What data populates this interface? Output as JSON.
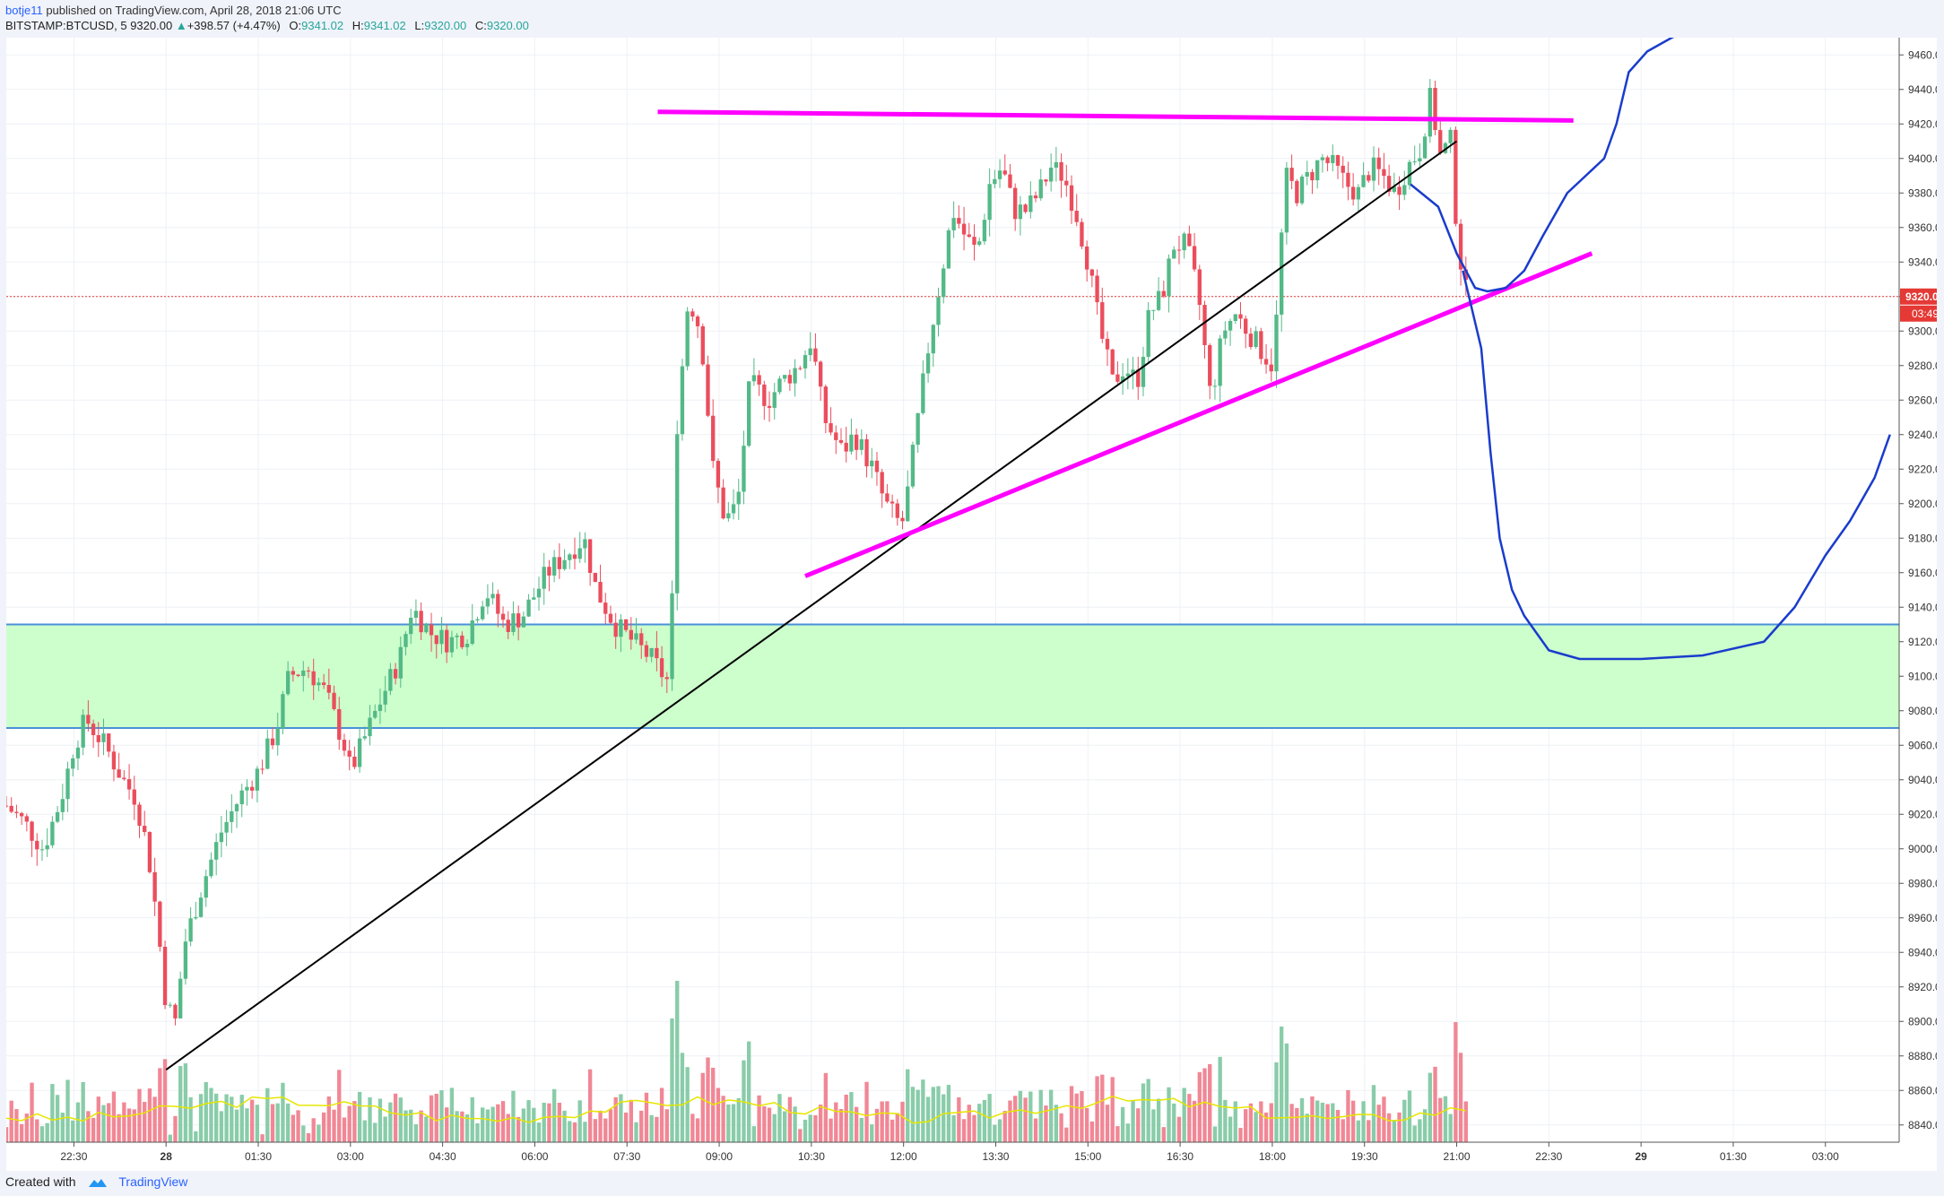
{
  "header": {
    "username": "botje11",
    "published_text": "published on TradingView.com, April 28, 2018 21:06 UTC",
    "symbol": "BITSTAMP:BTCUSD, 5",
    "last": "9320.00",
    "change": "+398.57 (+4.47%)",
    "o_label": "O:",
    "o_value": "9341.02",
    "h_label": "H:",
    "h_value": "9341.02",
    "l_label": "L:",
    "l_value": "9320.00",
    "c_label": "C:",
    "c_value": "9320.00"
  },
  "footer": {
    "created_with": "Created with",
    "brand": "TradingView"
  },
  "chart_data": {
    "type": "candlestick",
    "symbol": "BITSTAMP:BTCUSD",
    "interval": "5",
    "y_range": [
      8830,
      9470
    ],
    "x_range_hours": [
      -2.6,
      28.2
    ],
    "y_ticks": [
      9460,
      9440,
      9420,
      9400,
      9380,
      9360,
      9340,
      9320,
      9300,
      9280,
      9260,
      9240,
      9220,
      9200,
      9180,
      9160,
      9140,
      9120,
      9100,
      9080,
      9060,
      9040,
      9020,
      9000,
      8980,
      8960,
      8940,
      8920,
      8900,
      8880,
      8860,
      8840
    ],
    "y_tick_labels": [
      "9460.00",
      "9440.00",
      "9420.00",
      "9400.00",
      "9380.00",
      "9360.00",
      "9340.00",
      "9320.00",
      "9300.00",
      "9280.00",
      "9260.00",
      "9240.00",
      "9220.00",
      "9200.00",
      "9180.00",
      "9160.00",
      "9140.00",
      "9120.00",
      "9100.00",
      "9080.00",
      "9060.00",
      "9040.00",
      "9020.00",
      "9000.00",
      "8980.00",
      "8960.00",
      "8940.00",
      "8920.00",
      "8900.00",
      "8880.00",
      "8860.00",
      "8840.00"
    ],
    "x_ticks": [
      {
        "h": -1.5,
        "label": "22:30",
        "bold": false
      },
      {
        "h": 0,
        "label": "28",
        "bold": true
      },
      {
        "h": 1.5,
        "label": "01:30",
        "bold": false
      },
      {
        "h": 3,
        "label": "03:00",
        "bold": false
      },
      {
        "h": 4.5,
        "label": "04:30",
        "bold": false
      },
      {
        "h": 6,
        "label": "06:00",
        "bold": false
      },
      {
        "h": 7.5,
        "label": "07:30",
        "bold": false
      },
      {
        "h": 9,
        "label": "09:00",
        "bold": false
      },
      {
        "h": 10.5,
        "label": "10:30",
        "bold": false
      },
      {
        "h": 12,
        "label": "12:00",
        "bold": false
      },
      {
        "h": 13.5,
        "label": "13:30",
        "bold": false
      },
      {
        "h": 15,
        "label": "15:00",
        "bold": false
      },
      {
        "h": 16.5,
        "label": "16:30",
        "bold": false
      },
      {
        "h": 18,
        "label": "18:00",
        "bold": false
      },
      {
        "h": 19.5,
        "label": "19:30",
        "bold": false
      },
      {
        "h": 21,
        "label": "21:00",
        "bold": false
      },
      {
        "h": 22.5,
        "label": "22:30",
        "bold": false
      },
      {
        "h": 24,
        "label": "29",
        "bold": true
      },
      {
        "h": 25.5,
        "label": "01:30",
        "bold": false
      },
      {
        "h": 27,
        "label": "03:00",
        "bold": false
      }
    ],
    "price_path": [
      [
        -2.6,
        9025
      ],
      [
        -2.3,
        9015
      ],
      [
        -2.0,
        9000
      ],
      [
        -1.7,
        9030
      ],
      [
        -1.5,
        9060
      ],
      [
        -1.3,
        9075
      ],
      [
        -1.0,
        9060
      ],
      [
        -0.7,
        9040
      ],
      [
        -0.5,
        9030
      ],
      [
        -0.3,
        9000
      ],
      [
        -0.15,
        8960
      ],
      [
        0.0,
        8910
      ],
      [
        0.15,
        8900
      ],
      [
        0.3,
        8945
      ],
      [
        0.6,
        8980
      ],
      [
        0.9,
        9010
      ],
      [
        1.2,
        9030
      ],
      [
        1.5,
        9045
      ],
      [
        1.8,
        9070
      ],
      [
        2.0,
        9100
      ],
      [
        2.3,
        9105
      ],
      [
        2.6,
        9090
      ],
      [
        2.9,
        9060
      ],
      [
        3.0,
        9045
      ],
      [
        3.3,
        9070
      ],
      [
        3.6,
        9095
      ],
      [
        3.8,
        9110
      ],
      [
        4.0,
        9140
      ],
      [
        4.3,
        9125
      ],
      [
        4.6,
        9120
      ],
      [
        4.9,
        9125
      ],
      [
        5.2,
        9150
      ],
      [
        5.5,
        9130
      ],
      [
        5.8,
        9135
      ],
      [
        6.2,
        9160
      ],
      [
        6.5,
        9170
      ],
      [
        6.8,
        9180
      ],
      [
        7.0,
        9150
      ],
      [
        7.3,
        9130
      ],
      [
        7.6,
        9120
      ],
      [
        7.9,
        9110
      ],
      [
        8.2,
        9095
      ],
      [
        8.3,
        9240
      ],
      [
        8.5,
        9320
      ],
      [
        8.7,
        9300
      ],
      [
        8.9,
        9220
      ],
      [
        9.1,
        9190
      ],
      [
        9.3,
        9200
      ],
      [
        9.5,
        9270
      ],
      [
        9.8,
        9260
      ],
      [
        10.0,
        9270
      ],
      [
        10.3,
        9280
      ],
      [
        10.5,
        9295
      ],
      [
        10.7,
        9250
      ],
      [
        11.0,
        9230
      ],
      [
        11.2,
        9240
      ],
      [
        11.5,
        9220
      ],
      [
        11.7,
        9200
      ],
      [
        11.9,
        9190
      ],
      [
        12.0,
        9190
      ],
      [
        12.2,
        9240
      ],
      [
        12.4,
        9290
      ],
      [
        12.6,
        9330
      ],
      [
        12.8,
        9370
      ],
      [
        13.0,
        9355
      ],
      [
        13.2,
        9345
      ],
      [
        13.4,
        9385
      ],
      [
        13.6,
        9395
      ],
      [
        13.8,
        9370
      ],
      [
        14.0,
        9370
      ],
      [
        14.2,
        9380
      ],
      [
        14.4,
        9395
      ],
      [
        14.6,
        9390
      ],
      [
        14.8,
        9370
      ],
      [
        15.0,
        9340
      ],
      [
        15.2,
        9300
      ],
      [
        15.4,
        9270
      ],
      [
        15.6,
        9280
      ],
      [
        15.8,
        9270
      ],
      [
        16.0,
        9310
      ],
      [
        16.2,
        9320
      ],
      [
        16.4,
        9350
      ],
      [
        16.6,
        9350
      ],
      [
        16.8,
        9320
      ],
      [
        17.0,
        9260
      ],
      [
        17.2,
        9300
      ],
      [
        17.4,
        9310
      ],
      [
        17.6,
        9300
      ],
      [
        17.8,
        9290
      ],
      [
        18.0,
        9280
      ],
      [
        18.1,
        9320
      ],
      [
        18.2,
        9390
      ],
      [
        18.4,
        9380
      ],
      [
        18.6,
        9390
      ],
      [
        18.8,
        9400
      ],
      [
        19.0,
        9395
      ],
      [
        19.2,
        9385
      ],
      [
        19.4,
        9380
      ],
      [
        19.6,
        9395
      ],
      [
        19.8,
        9390
      ],
      [
        20.0,
        9380
      ],
      [
        20.2,
        9395
      ],
      [
        20.4,
        9405
      ],
      [
        20.6,
        9440
      ],
      [
        20.7,
        9400
      ],
      [
        20.9,
        9410
      ],
      [
        21.0,
        9360
      ],
      [
        21.1,
        9330
      ],
      [
        21.17,
        9320
      ]
    ],
    "horizontal_lines": [
      {
        "price": 9130,
        "color": "#4a90d9",
        "style": "support-zone-top"
      },
      {
        "price": 9070,
        "color": "#4a90d9",
        "style": "support-zone-bottom"
      }
    ],
    "zone": {
      "from": 9070,
      "to": 9130,
      "color": "#ccffcc"
    },
    "current_price_line": {
      "price": 9320,
      "label": "9320.00",
      "countdown": "03:49",
      "color": "#e53935"
    },
    "trendlines": [
      {
        "from": [
          0.0,
          8872
        ],
        "to": [
          21.0,
          9410
        ],
        "color": "#000000",
        "width": 2
      },
      {
        "from": [
          10.4,
          9158
        ],
        "to": [
          23.2,
          9345
        ],
        "color": "#ff00ff",
        "width": 5
      },
      {
        "from": [
          8.0,
          9427
        ],
        "to": [
          22.9,
          9422
        ],
        "color": "#ff00ff",
        "width": 5
      }
    ],
    "projection_curve": {
      "color": "#1a3ccc",
      "points": [
        [
          20.4,
          9385
        ],
        [
          20.8,
          9365
        ],
        [
          21.1,
          9335
        ],
        [
          21.5,
          9323
        ],
        [
          21.9,
          9328
        ],
        [
          22.2,
          9345
        ],
        [
          22.6,
          9375
        ],
        [
          23.1,
          9400
        ],
        [
          23.4,
          9420
        ],
        [
          23.8,
          9450
        ],
        [
          24.2,
          9462
        ],
        [
          24.6,
          9475
        ],
        [
          22.0,
          9330
        ]
      ],
      "path": [
        [
          20.25,
          9385
        ],
        [
          20.7,
          9372
        ],
        [
          21.0,
          9345
        ],
        [
          21.3,
          9325
        ],
        [
          21.5,
          9323
        ],
        [
          21.8,
          9325
        ],
        [
          22.1,
          9335
        ],
        [
          22.4,
          9355
        ],
        [
          22.8,
          9380
        ],
        [
          23.1,
          9390
        ],
        [
          23.4,
          9400
        ],
        [
          23.6,
          9420
        ],
        [
          23.8,
          9450
        ],
        [
          24.1,
          9462
        ],
        [
          24.5,
          9470
        ],
        [
          24.8,
          9475
        ]
      ]
    },
    "projection_curve_2": {
      "color": "#1a3ccc",
      "path": [
        [
          21.1,
          9335
        ],
        [
          21.4,
          9290
        ],
        [
          21.55,
          9230
        ],
        [
          21.7,
          9180
        ],
        [
          21.9,
          9150
        ],
        [
          22.1,
          9135
        ],
        [
          22.5,
          9115
        ],
        [
          23.0,
          9110
        ],
        [
          24.0,
          9110
        ],
        [
          25.0,
          9112
        ],
        [
          26.0,
          9120
        ],
        [
          26.5,
          9140
        ],
        [
          27.0,
          9170
        ],
        [
          27.4,
          9190
        ],
        [
          27.8,
          9215
        ],
        [
          28.05,
          9240
        ]
      ]
    },
    "volume_ma_color": "#e6e600",
    "volume_up_color": "#7cc7a0",
    "volume_down_color": "#f07a8a",
    "candle_up_color": "#53b987",
    "candle_down_color": "#eb4d5c"
  }
}
